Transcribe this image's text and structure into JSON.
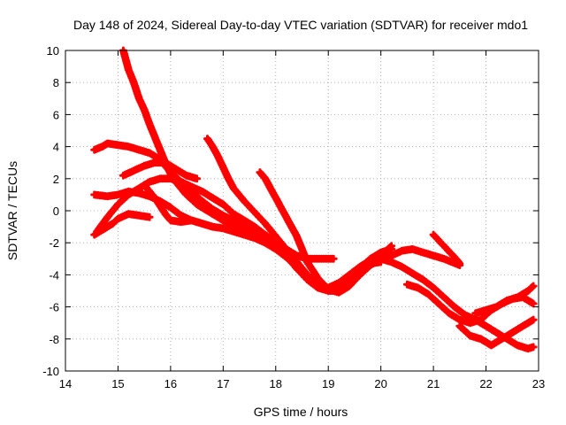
{
  "chart_data": {
    "type": "scatter",
    "title": "Day 148 of 2024, Sidereal Day-to-day VTEC variation (SDTVAR) for receiver mdo1",
    "xlabel": "GPS time / hours",
    "ylabel": "SDTVAR / TECUs",
    "xlim": [
      14,
      23
    ],
    "ylim": [
      -10,
      10
    ],
    "xticks": [
      14,
      15,
      16,
      17,
      18,
      19,
      20,
      21,
      22,
      23
    ],
    "yticks": [
      -10,
      -8,
      -6,
      -4,
      -2,
      0,
      2,
      4,
      6,
      8,
      10
    ],
    "grid": true,
    "marker": "plus",
    "color": "#ff0000",
    "series": [
      {
        "name": "s1",
        "x": [
          15.1,
          15.2,
          15.3,
          15.4,
          15.5,
          15.6,
          15.7,
          15.8,
          15.9,
          16.0,
          16.1,
          16.2,
          16.3,
          16.4,
          16.5,
          16.6,
          16.7,
          16.8,
          16.9,
          17.0,
          17.2,
          17.4,
          17.6,
          17.8,
          18.0,
          18.2,
          18.4,
          18.6,
          18.8,
          19.0,
          19.2,
          19.4,
          19.6,
          19.8,
          20.0,
          20.2
        ],
        "y": [
          10,
          8.8,
          8.0,
          7.0,
          6.3,
          5.4,
          4.6,
          3.8,
          3.0,
          2.3,
          1.8,
          1.4,
          1.0,
          0.7,
          0.4,
          0.2,
          0,
          -0.2,
          -0.4,
          -0.6,
          -0.9,
          -1.2,
          -1.5,
          -1.8,
          -2.2,
          -2.8,
          -3.6,
          -4.3,
          -4.8,
          -5.0,
          -5.0,
          -4.6,
          -4.0,
          -3.4,
          -2.8,
          -2.2
        ]
      },
      {
        "name": "s2",
        "x": [
          16.7,
          16.8,
          16.9,
          17.0,
          17.1,
          17.2,
          17.4,
          17.6,
          17.8,
          18.0,
          18.2,
          18.4,
          18.6,
          18.8,
          19.0,
          19.2,
          19.4,
          19.6,
          19.8,
          20.0,
          20.2
        ],
        "y": [
          4.5,
          4.0,
          3.4,
          2.7,
          2.0,
          1.4,
          0.6,
          -0.1,
          -0.8,
          -1.6,
          -2.4,
          -3.2,
          -4.0,
          -4.6,
          -5.0,
          -4.8,
          -4.2,
          -3.6,
          -3.0,
          -2.6,
          -2.4
        ]
      },
      {
        "name": "s3",
        "x": [
          17.7,
          17.8,
          17.9,
          18.0,
          18.1,
          18.2,
          18.3,
          18.4,
          18.5,
          18.6,
          18.8,
          19.0,
          19.2,
          19.4,
          19.6,
          19.8,
          20.0,
          20.2,
          20.4,
          20.6,
          20.8,
          21.0,
          21.2,
          21.5
        ],
        "y": [
          2.4,
          2.0,
          1.4,
          0.8,
          0.2,
          -0.4,
          -1.0,
          -1.6,
          -2.4,
          -3.2,
          -4.2,
          -4.9,
          -5.1,
          -4.7,
          -4.0,
          -3.4,
          -3.0,
          -2.8,
          -2.5,
          -2.4,
          -2.6,
          -2.8,
          -3.0,
          -3.4
        ]
      },
      {
        "name": "s4",
        "x": [
          14.55,
          14.7,
          14.8,
          15.0,
          15.2,
          15.4,
          15.6,
          15.8,
          16.0,
          16.2,
          16.4,
          16.6,
          16.8,
          17.0,
          17.2,
          17.4,
          17.6,
          17.8,
          18.0,
          18.2,
          18.4,
          18.6,
          18.8,
          19.0,
          19.2,
          19.4,
          19.6,
          19.8,
          20.0
        ],
        "y": [
          3.8,
          4.0,
          4.2,
          4.1,
          4.0,
          3.8,
          3.6,
          3.2,
          2.4,
          1.8,
          1.2,
          0.6,
          0.1,
          -0.3,
          -0.6,
          -0.9,
          -1.2,
          -1.6,
          -2.0,
          -2.6,
          -3.2,
          -4.0,
          -4.6,
          -4.9,
          -4.8,
          -4.4,
          -3.8,
          -3.3,
          -3.2
        ]
      },
      {
        "name": "s5",
        "x": [
          14.55,
          14.8,
          15.0,
          15.2,
          15.4,
          15.6,
          15.8,
          16.0,
          16.2,
          16.4,
          16.6,
          16.8,
          17.0,
          17.2,
          17.4,
          17.6,
          17.8,
          18.0,
          18.2,
          18.4,
          18.6,
          18.8,
          19.0,
          19.2,
          19.4,
          19.6,
          19.8,
          20.0,
          20.2,
          20.4,
          20.6,
          20.8,
          21.0,
          21.2,
          21.4,
          21.6,
          21.8,
          22.0,
          22.2,
          22.4,
          22.6,
          22.8,
          22.9
        ],
        "y": [
          1.0,
          0.9,
          1.0,
          1.2,
          1.1,
          0.9,
          0.6,
          0.2,
          -0.3,
          -0.6,
          -0.8,
          -1.0,
          -1.1,
          -1.3,
          -1.5,
          -1.7,
          -2.0,
          -2.4,
          -2.9,
          -3.5,
          -4.1,
          -4.6,
          -4.8,
          -4.5,
          -4.0,
          -3.5,
          -3.1,
          -3.0,
          -3.2,
          -3.5,
          -3.9,
          -4.3,
          -4.8,
          -5.4,
          -6.0,
          -6.5,
          -6.8,
          -7.2,
          -7.6,
          -8.0,
          -8.4,
          -8.6,
          -8.5
        ]
      },
      {
        "name": "s6",
        "x": [
          14.55,
          14.7,
          14.9,
          15.0,
          15.2,
          15.4,
          15.6
        ],
        "y": [
          -1.5,
          -1.2,
          -0.8,
          -0.5,
          -0.2,
          -0.3,
          -0.4
        ]
      },
      {
        "name": "s7",
        "x": [
          14.6,
          14.8,
          15.0,
          15.2,
          15.4,
          15.6,
          15.8,
          16.0,
          16.2,
          16.4,
          16.6,
          16.8,
          17.0,
          17.2,
          17.4,
          17.6,
          17.8,
          18.0,
          18.2,
          18.4,
          18.6,
          18.8,
          19.0,
          19.1
        ],
        "y": [
          -1.3,
          -0.4,
          0.4,
          1.0,
          1.4,
          1.8,
          2.0,
          2.0,
          1.8,
          1.5,
          1.2,
          0.8,
          0.4,
          -0.2,
          -0.6,
          -1.0,
          -1.5,
          -2.0,
          -2.4,
          -2.8,
          -3.0,
          -3.0,
          -3.0,
          -3.0
        ]
      },
      {
        "name": "s8",
        "x": [
          15.1,
          15.3,
          15.5,
          15.7,
          15.9,
          16.1,
          16.3,
          16.5
        ],
        "y": [
          2.2,
          2.5,
          2.8,
          3.0,
          3.0,
          2.6,
          2.2,
          2.0
        ]
      },
      {
        "name": "s9",
        "x": [
          15.5,
          15.7,
          15.9,
          16.0,
          16.2,
          16.4,
          16.6,
          16.8
        ],
        "y": [
          1.6,
          0.8,
          -0.2,
          -0.6,
          -0.7,
          -0.6,
          -0.8,
          -1.0
        ]
      },
      {
        "name": "s10",
        "x": [
          20.5,
          20.7,
          20.9,
          21.1,
          21.3,
          21.5,
          21.7,
          21.9,
          22.1,
          22.3,
          22.5,
          22.7,
          22.9
        ],
        "y": [
          -4.6,
          -4.8,
          -5.2,
          -5.8,
          -6.4,
          -6.8,
          -7.0,
          -6.8,
          -6.2,
          -5.8,
          -5.5,
          -5.4,
          -5.8
        ]
      },
      {
        "name": "s11",
        "x": [
          21.5,
          21.7,
          21.9,
          22.0,
          22.1,
          22.3,
          22.5,
          22.7,
          22.9
        ],
        "y": [
          -7.2,
          -7.8,
          -8.0,
          -8.2,
          -8.4,
          -8.0,
          -7.6,
          -7.2,
          -6.8
        ]
      },
      {
        "name": "s12",
        "x": [
          21.8,
          22.0,
          22.2,
          22.4,
          22.6,
          22.8,
          22.9
        ],
        "y": [
          -6.4,
          -6.2,
          -6.0,
          -5.6,
          -5.4,
          -5.0,
          -4.7
        ]
      },
      {
        "name": "s13",
        "x": [
          21.0,
          21.2,
          21.4,
          21.5
        ],
        "y": [
          -1.5,
          -2.2,
          -2.9,
          -3.3
        ]
      }
    ]
  }
}
